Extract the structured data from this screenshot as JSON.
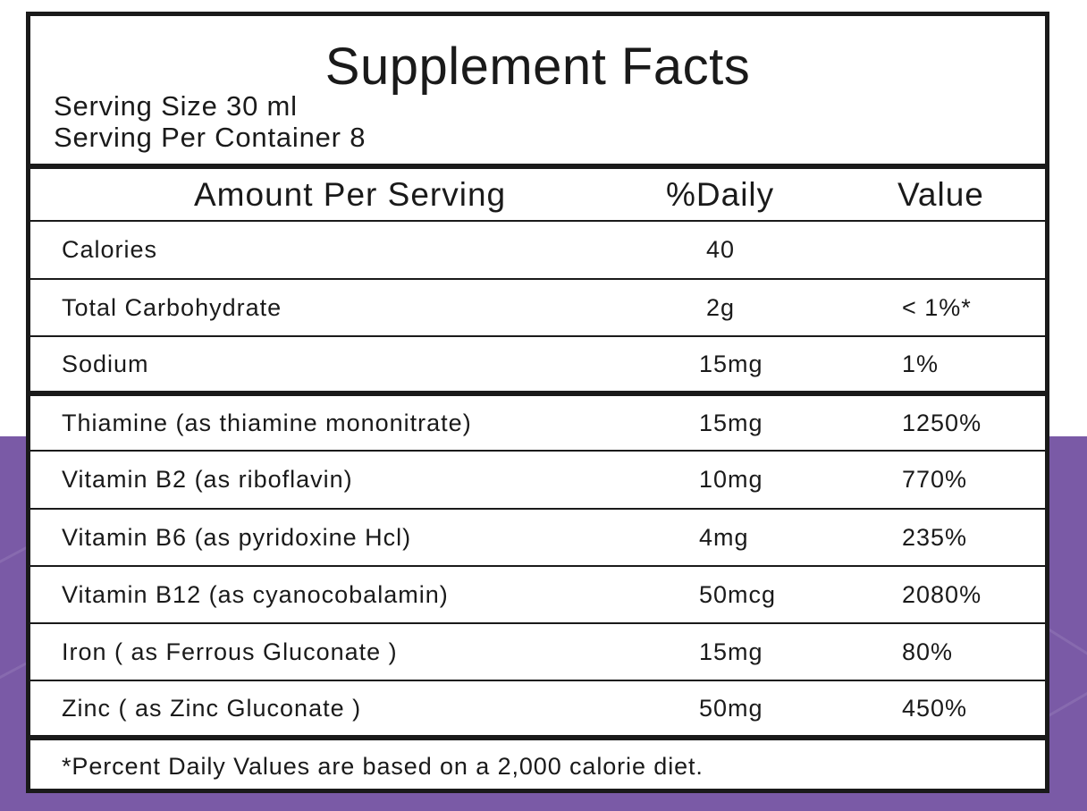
{
  "colors": {
    "background_band": "#7a5aa6",
    "border": "#1a1a1a",
    "panel": "#ffffff"
  },
  "label": {
    "title": "Supplement Facts",
    "serving_size": "Serving Size 30 ml",
    "servings_per_container": "Serving Per Container  8"
  },
  "header": {
    "amount_per_serving": "Amount Per Serving",
    "daily": "%Daily",
    "value": "Value"
  },
  "rows": [
    {
      "name": "Calories",
      "amount": "40",
      "dv": ""
    },
    {
      "name": "Total Carbohydrate",
      "amount": "2g",
      "dv": "< 1%*"
    },
    {
      "name": "Sodium",
      "amount": "15mg",
      "dv": "1%"
    },
    {
      "name": "Thiamine (as thiamine mononitrate)",
      "amount": "15mg",
      "dv": "1250%"
    },
    {
      "name": "Vitamin B2 (as riboflavin)",
      "amount": "10mg",
      "dv": "770%"
    },
    {
      "name": "Vitamin B6 (as pyridoxine Hcl)",
      "amount": "4mg",
      "dv": "235%"
    },
    {
      "name": "Vitamin B12 (as cyanocobalamin)",
      "amount": "50mcg",
      "dv": "2080%"
    },
    {
      "name": "Iron ( as Ferrous Gluconate )",
      "amount": "15mg",
      "dv": "80%"
    },
    {
      "name": "Zinc ( as Zinc Gluconate )",
      "amount": "50mg",
      "dv": "450%"
    }
  ],
  "footnote": "*Percent Daily Values are based on a 2,000 calorie diet."
}
